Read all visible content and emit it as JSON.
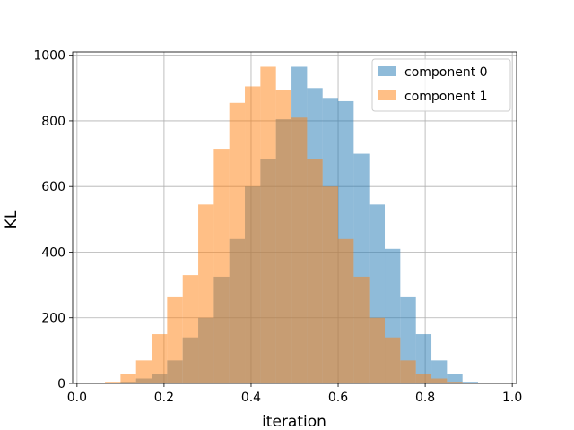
{
  "chart_data": {
    "type": "bar",
    "subtype": "histogram",
    "title": "",
    "xlabel": "iteration",
    "ylabel": "KL",
    "xlim": [
      -0.01,
      1.01
    ],
    "ylim": [
      0,
      1010
    ],
    "xticks": [
      0.0,
      0.2,
      0.4,
      0.6,
      0.8,
      1.0
    ],
    "xtick_labels": [
      "0.0",
      "0.2",
      "0.4",
      "0.6",
      "0.8",
      "1.0"
    ],
    "yticks": [
      0,
      200,
      400,
      600,
      800,
      1000
    ],
    "ytick_labels": [
      "0",
      "200",
      "400",
      "600",
      "800",
      "1000"
    ],
    "grid": true,
    "legend_position": "top-right",
    "bin_width": 0.0357,
    "series": [
      {
        "name": "component 0",
        "color": "#1f77b4",
        "alpha": 0.5,
        "bin_starts": [
          0.0643,
          0.1,
          0.1357,
          0.1714,
          0.2071,
          0.2429,
          0.2786,
          0.3143,
          0.35,
          0.3857,
          0.4214,
          0.4571,
          0.4929,
          0.5286,
          0.5643,
          0.6,
          0.6357,
          0.6714,
          0.7071,
          0.7429,
          0.7786,
          0.8143,
          0.85,
          0.8857
        ],
        "counts": [
          2,
          5,
          15,
          28,
          70,
          140,
          200,
          325,
          440,
          600,
          685,
          805,
          965,
          900,
          870,
          860,
          700,
          545,
          410,
          265,
          150,
          70,
          30,
          5
        ]
      },
      {
        "name": "component 1",
        "color": "#ff7f0e",
        "alpha": 0.5,
        "bin_starts": [
          0.0643,
          0.1,
          0.1357,
          0.1714,
          0.2071,
          0.2429,
          0.2786,
          0.3143,
          0.35,
          0.3857,
          0.4214,
          0.4571,
          0.4929,
          0.5286,
          0.5643,
          0.6,
          0.6357,
          0.6714,
          0.7071,
          0.7429,
          0.7786,
          0.8143,
          0.85,
          0.8857
        ],
        "counts": [
          5,
          30,
          70,
          150,
          265,
          330,
          545,
          715,
          855,
          905,
          965,
          895,
          810,
          685,
          600,
          440,
          325,
          200,
          140,
          70,
          28,
          15,
          5,
          2
        ]
      }
    ]
  }
}
